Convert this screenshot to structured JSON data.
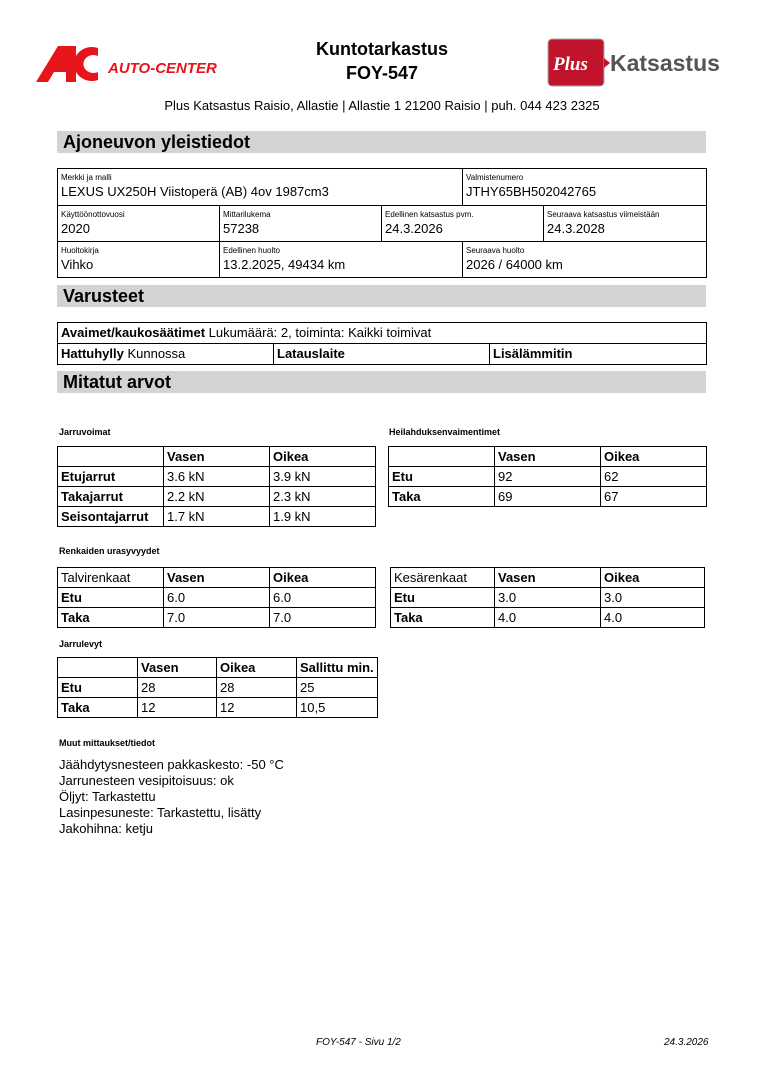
{
  "header": {
    "title": "Kuntotarkastus",
    "plate": "FOY-547",
    "address": "Plus Katsastus Raisio, Allastie | Allastie 1 21200 Raisio | puh. 044 423 2325",
    "logo_left": "AC AUTO-CENTER",
    "logo_right": "Plus Katsastus",
    "logo_left_color": "#e8141b",
    "logo_right_color": "#c0142c"
  },
  "sections": {
    "general": "Ajoneuvon yleistiedot",
    "equipment": "Varusteet",
    "measured": "Mitatut arvot"
  },
  "vehicle": [
    {
      "label": "Merkki ja malli",
      "value": "LEXUS UX250H Viistoperä (AB) 4ov 1987cm3"
    },
    {
      "label": "Valmistenumero",
      "value": "JTHY65BH502042765"
    },
    {
      "label": "Käyttöönottovuosi",
      "value": "2020"
    },
    {
      "label": "Mittarilukema",
      "value": "57238"
    },
    {
      "label": "Edellinen katsastus pvm.",
      "value": "24.3.2026"
    },
    {
      "label": "Seuraava katsastus viimeistään",
      "value": "24.3.2028"
    },
    {
      "label": "Huoltokirja",
      "value": "Vihko"
    },
    {
      "label": "Edellinen huolto",
      "value": "13.2.2025, 49434 km"
    },
    {
      "label": "Seuraava huolto",
      "value": "2026 / 64000 km"
    }
  ],
  "equipment": [
    {
      "label": "Avaimet/kaukosäätimet",
      "value": "Lukumäärä: 2, toiminta: Kaikki toimivat"
    },
    {
      "label": "Hattuhylly",
      "value": "Kunnossa"
    },
    {
      "label": "Latauslaite",
      "value": ""
    },
    {
      "label": "Lisälämmitin",
      "value": ""
    }
  ],
  "brakes": {
    "title": "Jarruvoimat",
    "headers": [
      "",
      "Vasen",
      "Oikea"
    ],
    "rows": [
      [
        "Etujarrut",
        "3.6 kN",
        "3.9 kN"
      ],
      [
        "Takajarrut",
        "2.2 kN",
        "2.3 kN"
      ],
      [
        "Seisontajarrut",
        "1.7 kN",
        "1.9 kN"
      ]
    ]
  },
  "shocks": {
    "title": "Heilahduksenvaimentimet",
    "headers": [
      "",
      "Vasen",
      "Oikea"
    ],
    "rows": [
      [
        "Etu",
        "92",
        "62"
      ],
      [
        "Taka",
        "69",
        "67"
      ]
    ]
  },
  "tires_title": "Renkaiden urasyvyydet",
  "winter": {
    "headers": [
      "Talvirenkaat",
      "Vasen",
      "Oikea"
    ],
    "rows": [
      [
        "Etu",
        "6.0",
        "6.0"
      ],
      [
        "Taka",
        "7.0",
        "7.0"
      ]
    ]
  },
  "summer": {
    "headers": [
      "Kesärenkaat",
      "Vasen",
      "Oikea"
    ],
    "rows": [
      [
        "Etu",
        "3.0",
        "3.0"
      ],
      [
        "Taka",
        "4.0",
        "4.0"
      ]
    ]
  },
  "discs": {
    "title": "Jarrulevyt",
    "headers": [
      "",
      "Vasen",
      "Oikea",
      "Sallittu min."
    ],
    "rows": [
      [
        "Etu",
        "28",
        "28",
        "25"
      ],
      [
        "Taka",
        "12",
        "12",
        "10,5"
      ]
    ]
  },
  "other": {
    "title": "Muut mittaukset/tiedot",
    "lines": [
      "Jäähdytysnesteen pakkaskesto: -50 °C",
      "Jarrunesteen vesipitoisuus: ok",
      "Öljyt: Tarkastettu",
      "Lasinpesuneste: Tarkastettu, lisätty",
      "Jakohihna: ketju"
    ]
  },
  "footer": {
    "page": "FOY-547 - Sivu 1/2",
    "date": "24.3.2026"
  }
}
